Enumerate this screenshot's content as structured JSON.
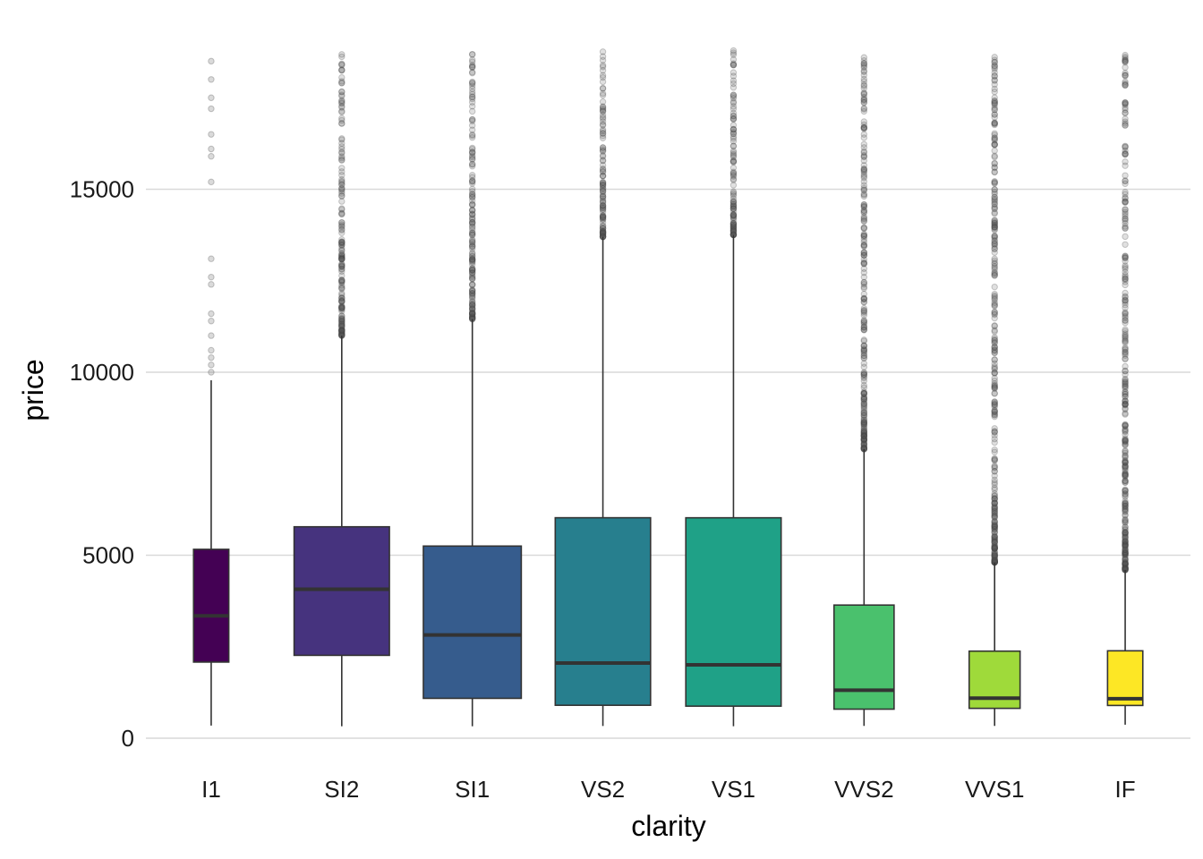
{
  "chart_data": {
    "type": "box",
    "xlabel": "clarity",
    "ylabel": "price",
    "ylim": [
      0,
      18900
    ],
    "y_ticks": [
      0,
      5000,
      10000,
      15000
    ],
    "grid": "horizontal",
    "legend": "none",
    "categories": [
      "I1",
      "SI2",
      "SI1",
      "VS2",
      "VS1",
      "VVS2",
      "VVS1",
      "IF"
    ],
    "box_colors": [
      "#440154",
      "#46337E",
      "#365C8D",
      "#277F8E",
      "#1FA187",
      "#4AC16D",
      "#9FDA3A",
      "#FDE725"
    ],
    "box_width_fraction": [
      0.27,
      0.73,
      0.75,
      0.73,
      0.73,
      0.46,
      0.39,
      0.27
    ],
    "boxes": [
      {
        "category": "I1",
        "whisker_low": 345,
        "q1": 2080,
        "median": 3344,
        "q3": 5161,
        "whisker_high": 9780,
        "outliers": [
          10000,
          10200,
          10400,
          10600,
          11000,
          11400,
          11600,
          12400,
          12600,
          13100,
          15200,
          15900,
          16100,
          16500,
          17200,
          17500,
          18000,
          18500
        ]
      },
      {
        "category": "SI2",
        "whisker_low": 326,
        "q1": 2264,
        "median": 4072,
        "q3": 5777,
        "whisker_high": 11000,
        "outlier_band": [
          11000,
          18800
        ]
      },
      {
        "category": "SI1",
        "whisker_low": 326,
        "q1": 1089,
        "median": 2822,
        "q3": 5250,
        "whisker_high": 11450,
        "outlier_band": [
          11450,
          18800
        ]
      },
      {
        "category": "VS2",
        "whisker_low": 334,
        "q1": 900,
        "median": 2054,
        "q3": 6024,
        "whisker_high": 13700,
        "outlier_band": [
          13700,
          18800
        ]
      },
      {
        "category": "VS1",
        "whisker_low": 327,
        "q1": 876,
        "median": 2005,
        "q3": 6023,
        "whisker_high": 13750,
        "outlier_band": [
          13750,
          18800
        ]
      },
      {
        "category": "VVS2",
        "whisker_low": 336,
        "q1": 794,
        "median": 1311,
        "q3": 3638,
        "whisker_high": 7900,
        "outlier_band": [
          7900,
          18800
        ]
      },
      {
        "category": "VVS1",
        "whisker_low": 336,
        "q1": 816,
        "median": 1093,
        "q3": 2379,
        "whisker_high": 4800,
        "outlier_band": [
          4800,
          18800
        ]
      },
      {
        "category": "IF",
        "whisker_low": 369,
        "q1": 895,
        "median": 1080,
        "q3": 2388,
        "whisker_high": 4600,
        "outlier_band": [
          4600,
          18800
        ]
      }
    ]
  }
}
